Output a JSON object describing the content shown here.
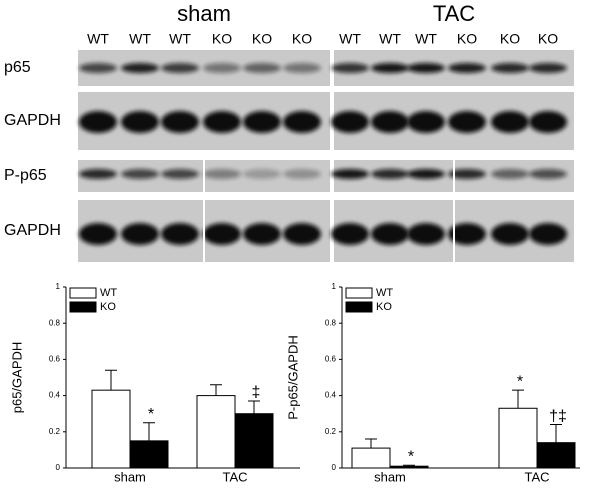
{
  "blots": {
    "groups": [
      {
        "title": "sham",
        "lanes": [
          "WT",
          "WT",
          "WT",
          "KO",
          "KO",
          "KO"
        ]
      },
      {
        "title": "TAC",
        "lanes": [
          "WT",
          "WT",
          "WT",
          "KO",
          "KO",
          "KO"
        ]
      }
    ],
    "rows": [
      "p65",
      "GAPDH",
      "P-p65",
      "GAPDH"
    ]
  },
  "chart_data": [
    {
      "type": "bar",
      "ylabel": "p65/GAPDH",
      "categories": [
        "sham",
        "TAC"
      ],
      "ylim": [
        0,
        1
      ],
      "yticks": [
        0,
        0.2,
        0.4,
        0.6,
        0.8,
        1
      ],
      "legend": "upper left",
      "series": [
        {
          "name": "WT",
          "color": "#ffffff",
          "values": [
            0.43,
            0.4
          ],
          "errors": [
            0.11,
            0.06
          ],
          "annotations": [
            null,
            null
          ]
        },
        {
          "name": "KO",
          "color": "#000000",
          "values": [
            0.15,
            0.3
          ],
          "errors": [
            0.1,
            0.07
          ],
          "annotations": [
            "*",
            "‡"
          ]
        }
      ]
    },
    {
      "type": "bar",
      "ylabel": "P-p65/GAPDH",
      "categories": [
        "sham",
        "TAC"
      ],
      "ylim": [
        0,
        1
      ],
      "yticks": [
        0,
        0.2,
        0.4,
        0.6,
        0.8,
        1
      ],
      "legend": "upper left",
      "series": [
        {
          "name": "WT",
          "color": "#ffffff",
          "values": [
            0.11,
            0.33
          ],
          "errors": [
            0.05,
            0.1
          ],
          "annotations": [
            null,
            "*"
          ]
        },
        {
          "name": "KO",
          "color": "#000000",
          "values": [
            0.01,
            0.14
          ],
          "errors": [
            0.005,
            0.1
          ],
          "annotations": [
            "*",
            "†‡"
          ]
        }
      ]
    }
  ]
}
